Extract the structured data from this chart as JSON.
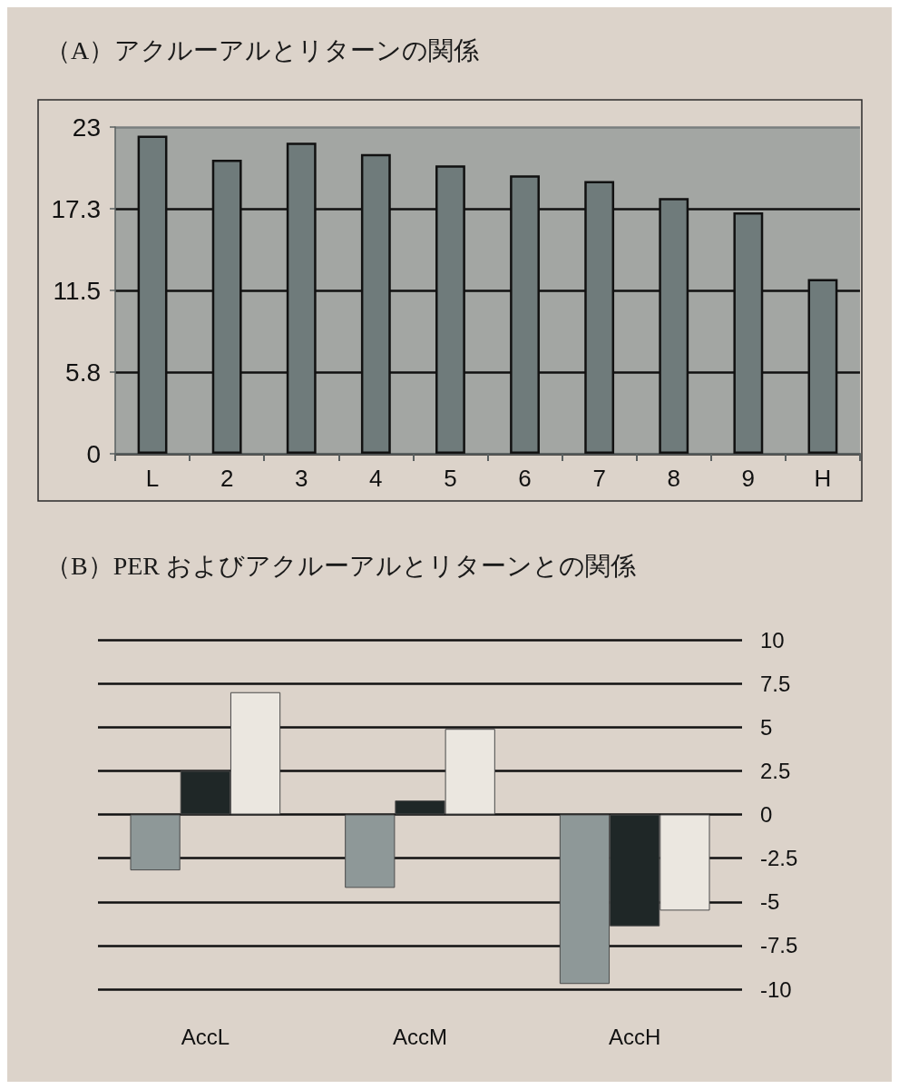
{
  "chart_data": [
    {
      "type": "bar",
      "title": "（A）アクルーアルとリターンの関係",
      "categories": [
        "L",
        "2",
        "3",
        "4",
        "5",
        "6",
        "7",
        "8",
        "9",
        "H"
      ],
      "values": [
        22.4,
        20.7,
        21.9,
        21.1,
        20.3,
        19.6,
        19.2,
        18.0,
        17.0,
        12.3
      ],
      "color": "#6f7b7b",
      "ylim": [
        0,
        23
      ],
      "yticks": [
        0,
        {
          "value": 5.75,
          "label": "5.8"
        },
        11.5,
        {
          "value": 17.25,
          "label": "17.3"
        },
        23
      ],
      "grid": "y"
    },
    {
      "type": "bar",
      "title": "（B）PER およびアクルーアルとリターンとの関係",
      "categories": [
        "AccL",
        "AccM",
        "AccH"
      ],
      "series": [
        {
          "color": "#8e9898",
          "values": [
            -3.2,
            -4.2,
            -9.7
          ]
        },
        {
          "color": "#1f2727",
          "values": [
            2.5,
            0.8,
            -6.4
          ]
        },
        {
          "color": "#ebe7e0",
          "values": [
            7.0,
            4.9,
            -5.5
          ]
        }
      ],
      "ylim": [
        -10,
        10
      ],
      "yticks": [
        -10,
        -7.5,
        -5,
        -2.5,
        0,
        2.5,
        5,
        7.5,
        10
      ],
      "grid": "y"
    }
  ]
}
